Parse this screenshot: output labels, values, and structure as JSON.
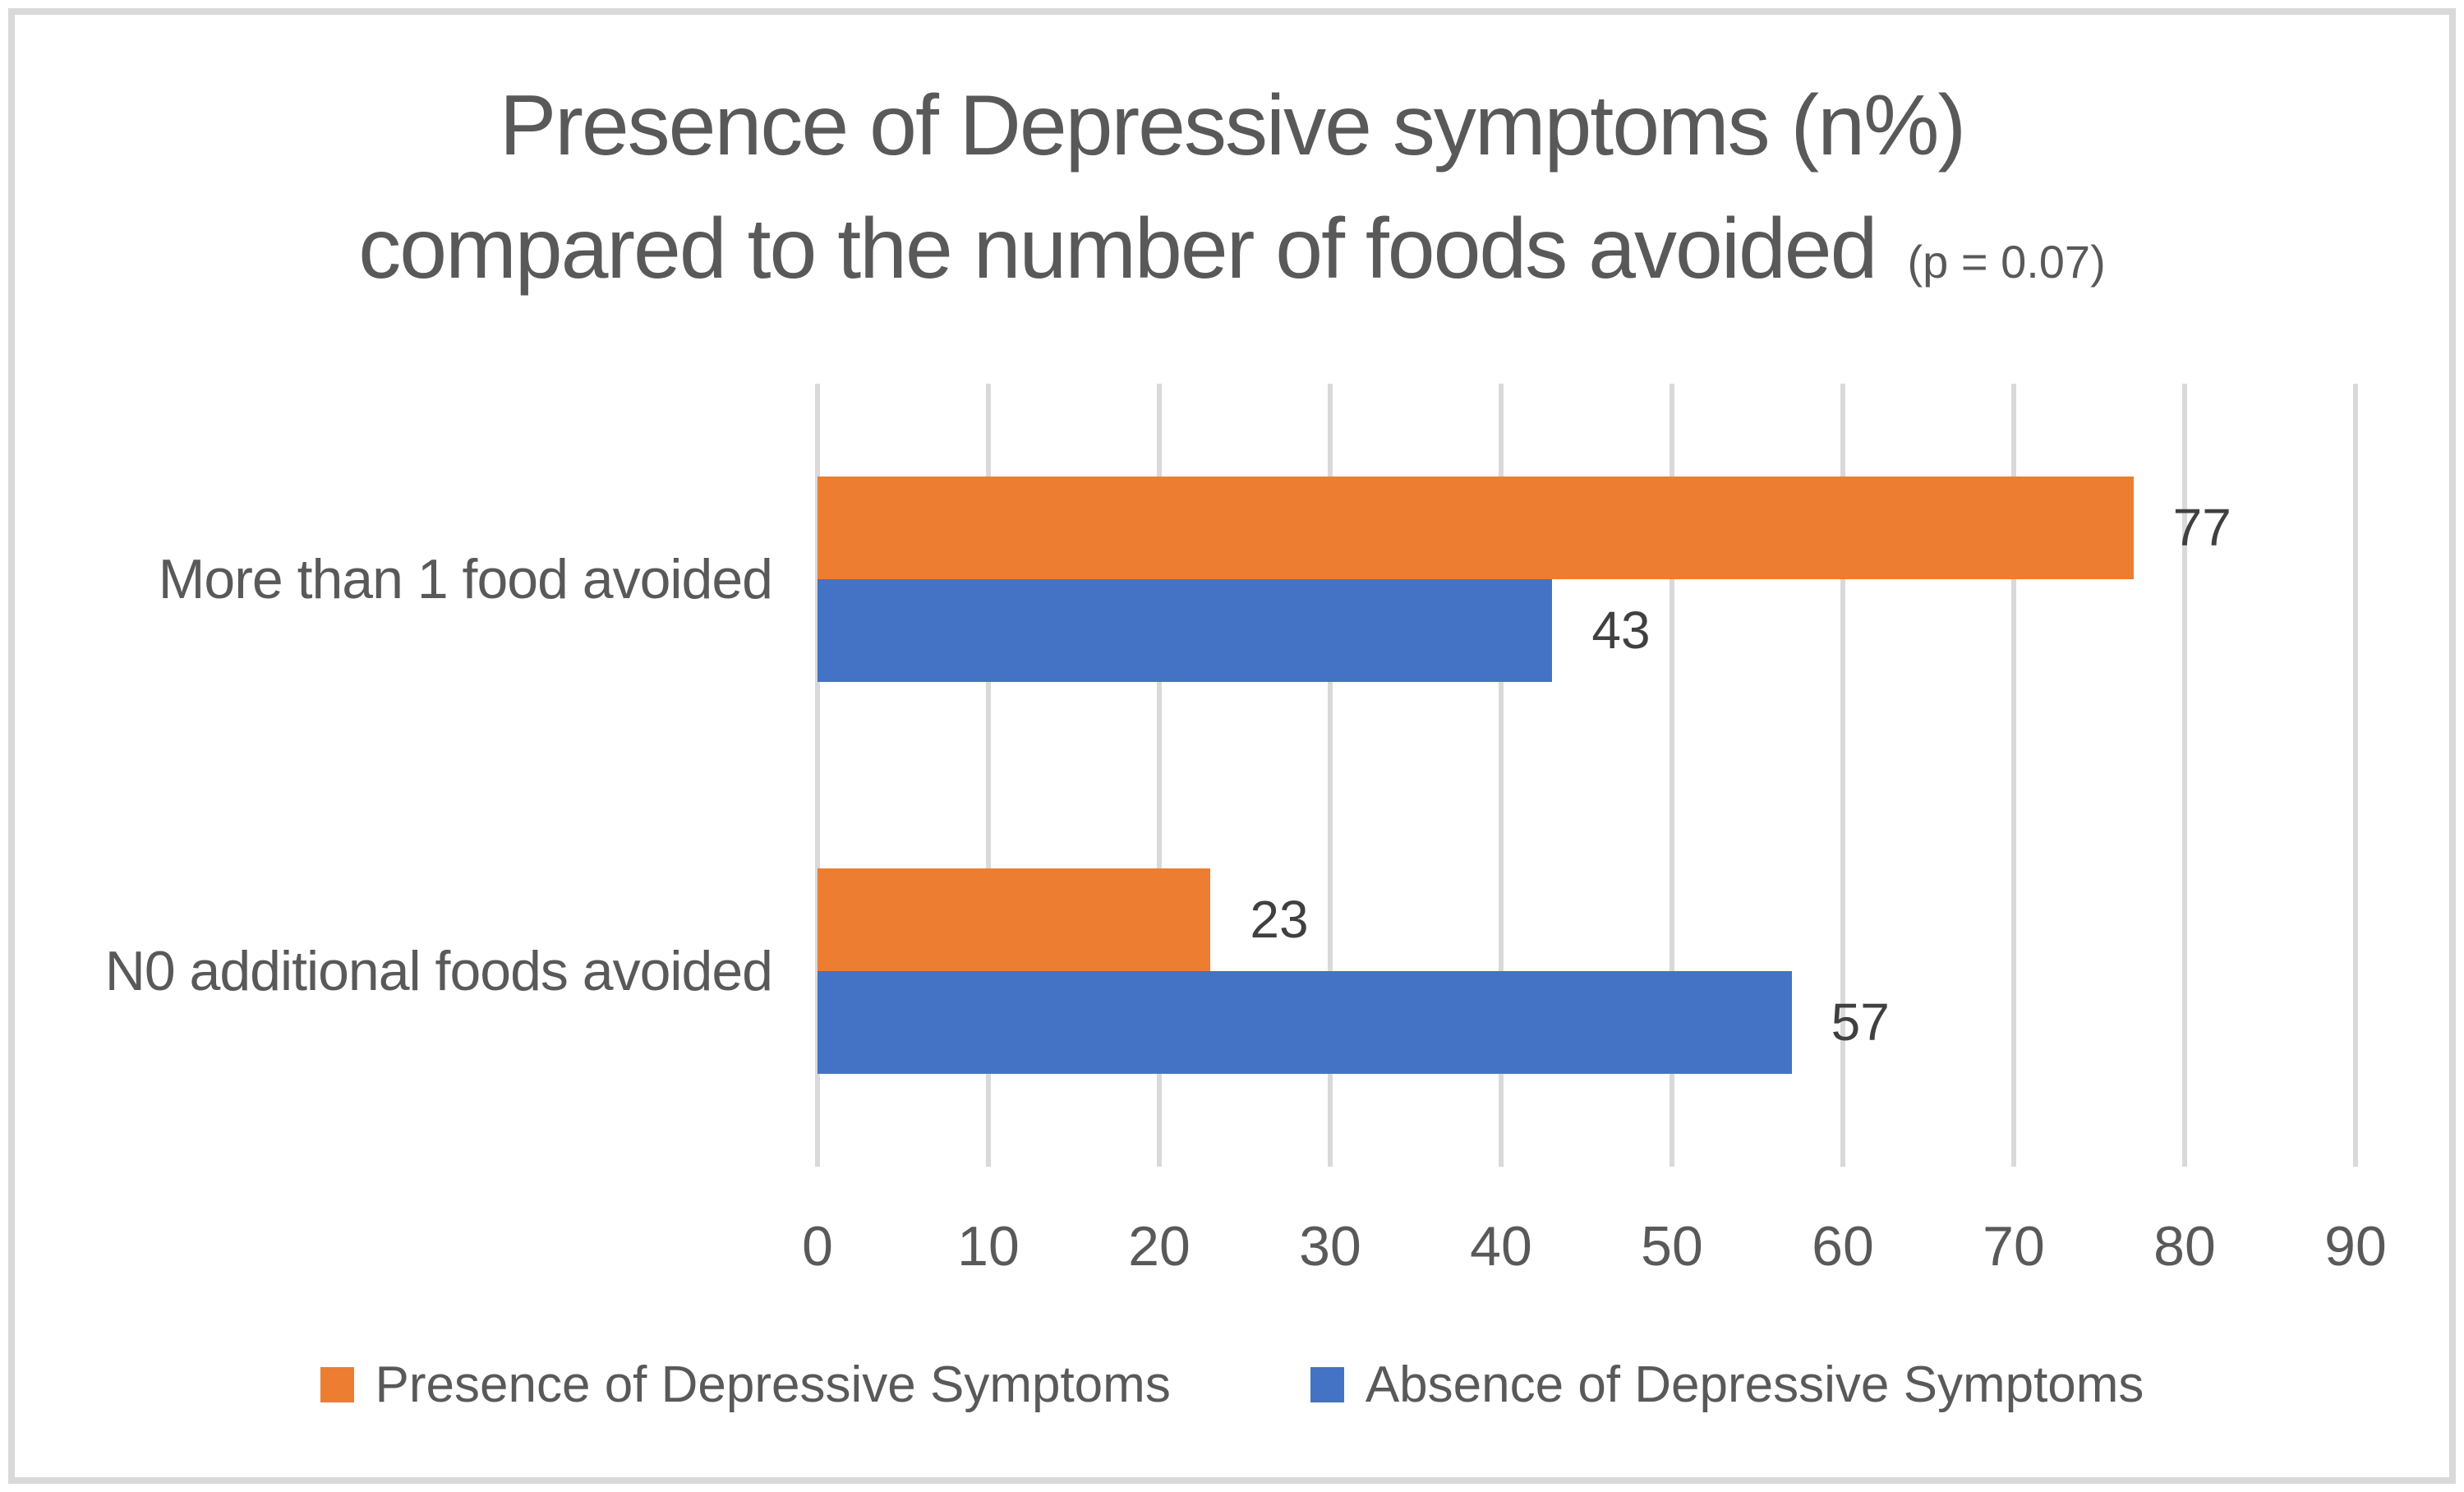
{
  "title": {
    "line1": "Presence of Depressive symptoms (n%)",
    "line2": "compared to the number of foods avoided",
    "p_value": "(p = 0.07)"
  },
  "colors": {
    "presence_series": "#ED7D31",
    "absence_series": "#4472C4",
    "gridline": "#D9D9D9",
    "chart_border": "#D9D9D9",
    "axis_text": "#595959",
    "title_text": "#595959",
    "data_label_text": "#404040",
    "background": "#FFFFFF"
  },
  "chart_data": {
    "type": "bar",
    "orientation": "horizontal",
    "title": "Presence of Depressive symptoms (n%) compared to the number of foods avoided",
    "annotation": "(p = 0.07)",
    "categories": [
      "More than 1 food avoided",
      "N0 additional foods avoided"
    ],
    "series": [
      {
        "name": "Presence of Depressive Symptoms",
        "color": "#ED7D31",
        "values": [
          77,
          23
        ]
      },
      {
        "name": "Absence of Depressive Symptoms",
        "color": "#4472C4",
        "values": [
          43,
          57
        ]
      }
    ],
    "xlabel": "",
    "ylabel": "",
    "xticks": [
      0,
      10,
      20,
      30,
      40,
      50,
      60,
      70,
      80,
      90
    ],
    "xlim": [
      0,
      90
    ],
    "grid": "vertical",
    "data_labels": true,
    "legend_position": "bottom"
  }
}
